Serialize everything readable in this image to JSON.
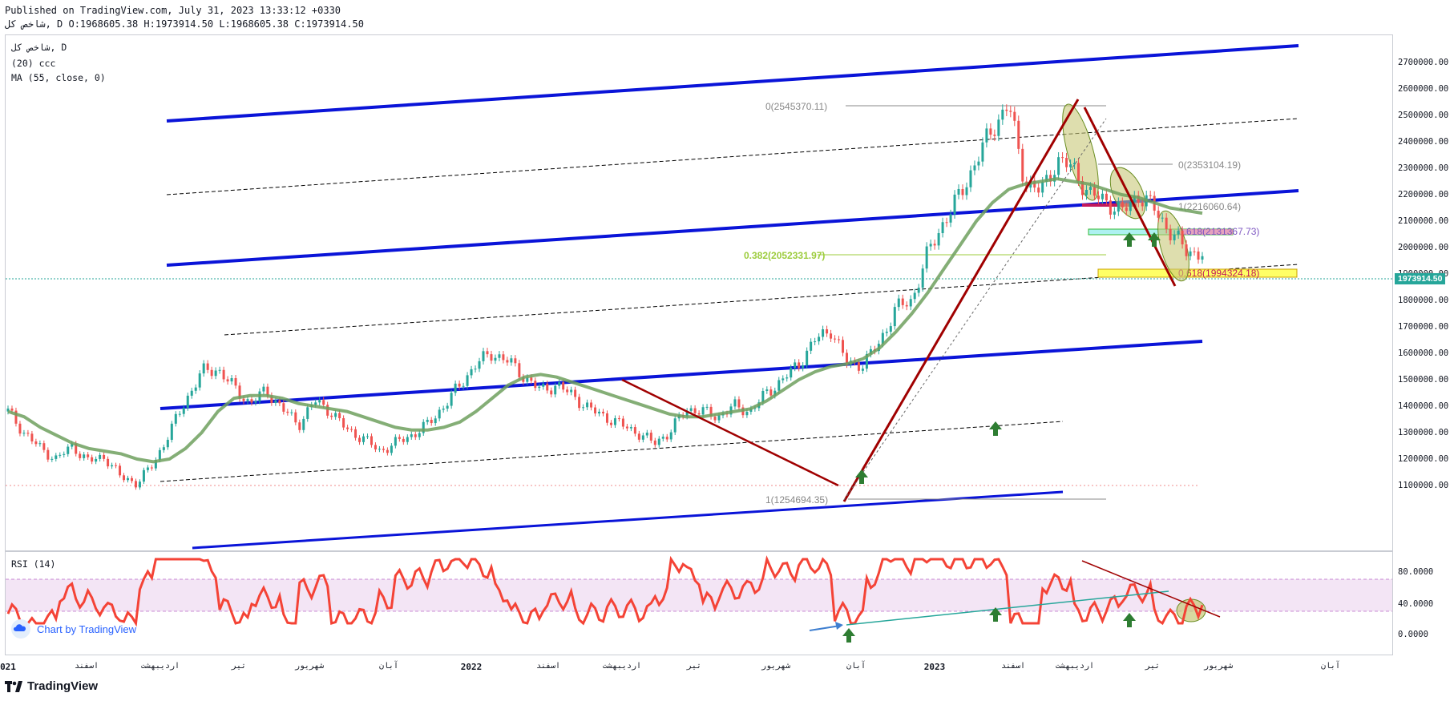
{
  "header": {
    "published": "Published on TradingView.com, July 31, 2023 13:33:12 +0330",
    "ohlc": "شاخص کل, D O:1968605.38 H:1973914.50 L:1968605.38 C:1973914.50"
  },
  "legend": {
    "symbol": "شاخص کل, D",
    "study1": "(20) ccc",
    "study2": "MA (55, close, 0)",
    "rsi": "RSI (14)"
  },
  "price_axis": [
    "2700000.00",
    "2600000.00",
    "2500000.00",
    "2400000.00",
    "2300000.00",
    "2200000.00",
    "2100000.00",
    "2000000.00",
    "1900000.00",
    "1800000.00",
    "1700000.00",
    "1600000.00",
    "1500000.00",
    "1400000.00",
    "1300000.00",
    "1200000.00",
    "1100000.00"
  ],
  "rsi_axis": [
    "80.0000",
    "40.0000",
    "0.0000"
  ],
  "last_price": "1973914.50",
  "time_axis": [
    {
      "label": "021",
      "year": true
    },
    {
      "label": "اسفند",
      "year": false
    },
    {
      "label": "اردیبهشت",
      "year": false
    },
    {
      "label": "تیر",
      "year": false
    },
    {
      "label": "شهریور",
      "year": false
    },
    {
      "label": "آبان",
      "year": false
    },
    {
      "label": "2022",
      "year": true
    },
    {
      "label": "اسفند",
      "year": false
    },
    {
      "label": "اردیبهشت",
      "year": false
    },
    {
      "label": "تیر",
      "year": false
    },
    {
      "label": "شهریور",
      "year": false
    },
    {
      "label": "آبان",
      "year": false
    },
    {
      "label": "2023",
      "year": true
    },
    {
      "label": "اسفند",
      "year": false
    },
    {
      "label": "اردیبهشت",
      "year": false
    },
    {
      "label": "تیر",
      "year": false
    },
    {
      "label": "شهریور",
      "year": false
    },
    {
      "label": "آبان",
      "year": false
    }
  ],
  "fib_labels": {
    "top": "0(2545370.11)",
    "second": "0(2353104.19)",
    "third": "1(2216060.64)",
    "fib382": "0.382(2052331.97)",
    "bottom": "1(1254694.35)",
    "box1": "0.618(2131367.73)",
    "box2": "0.618(1994324.18)"
  },
  "byline": "Chart by TradingView",
  "footer": "TradingView",
  "colors": {
    "channel": "#0a14d8",
    "ma": "#6fa05e",
    "rsi": "#f44336",
    "arrow": "#a00000",
    "up": "#26a69a",
    "down": "#ef5350",
    "rsi_band": "#f3e5f5"
  },
  "chart_data": {
    "type": "line",
    "title": "شاخص کل, D",
    "ylim": [
      1100000,
      2700000
    ],
    "series": [
      {
        "name": "شاخص کل",
        "values": [
          1380000,
          1300000,
          1240000,
          1200000,
          1250000,
          1190000,
          1210000,
          1130000,
          1110000,
          1180000,
          1300000,
          1420000,
          1530000,
          1540000,
          1470000,
          1410000,
          1460000,
          1390000,
          1330000,
          1420000,
          1380000,
          1310000,
          1280000,
          1230000,
          1260000,
          1290000,
          1330000,
          1400000,
          1480000,
          1560000,
          1600000,
          1570000,
          1510000,
          1460000,
          1480000,
          1440000,
          1390000,
          1360000,
          1330000,
          1300000,
          1260000,
          1300000,
          1390000,
          1380000,
          1360000,
          1400000,
          1380000,
          1450000,
          1500000,
          1560000,
          1650000,
          1690000,
          1560000,
          1560000,
          1640000,
          1770000,
          1800000,
          1980000,
          2100000,
          2200000,
          2330000,
          2450000,
          2545370,
          2250000,
          2210000,
          2330000,
          2300000,
          2200000,
          2180000,
          2130000,
          2200000,
          2150000,
          2060000,
          1990000,
          1973914
        ]
      },
      {
        "name": "MA (55, close, 0)",
        "values": [
          1380000,
          1360000,
          1320000,
          1290000,
          1260000,
          1240000,
          1230000,
          1220000,
          1200000,
          1190000,
          1200000,
          1240000,
          1300000,
          1380000,
          1430000,
          1440000,
          1440000,
          1430000,
          1410000,
          1400000,
          1390000,
          1380000,
          1360000,
          1340000,
          1320000,
          1310000,
          1310000,
          1320000,
          1340000,
          1380000,
          1430000,
          1480000,
          1510000,
          1520000,
          1510000,
          1490000,
          1470000,
          1450000,
          1430000,
          1410000,
          1390000,
          1370000,
          1360000,
          1360000,
          1370000,
          1380000,
          1390000,
          1420000,
          1460000,
          1500000,
          1530000,
          1550000,
          1560000,
          1580000,
          1620000,
          1680000,
          1750000,
          1830000,
          1920000,
          2010000,
          2100000,
          2170000,
          2220000,
          2240000,
          2250000,
          2260000,
          2250000,
          2240000,
          2220000,
          2200000,
          2190000,
          2170000,
          2150000,
          2140000,
          2130000
        ]
      }
    ],
    "rsi": {
      "name": "RSI (14)",
      "ylim": [
        0,
        100
      ],
      "levels": [
        70,
        30
      ]
    }
  }
}
